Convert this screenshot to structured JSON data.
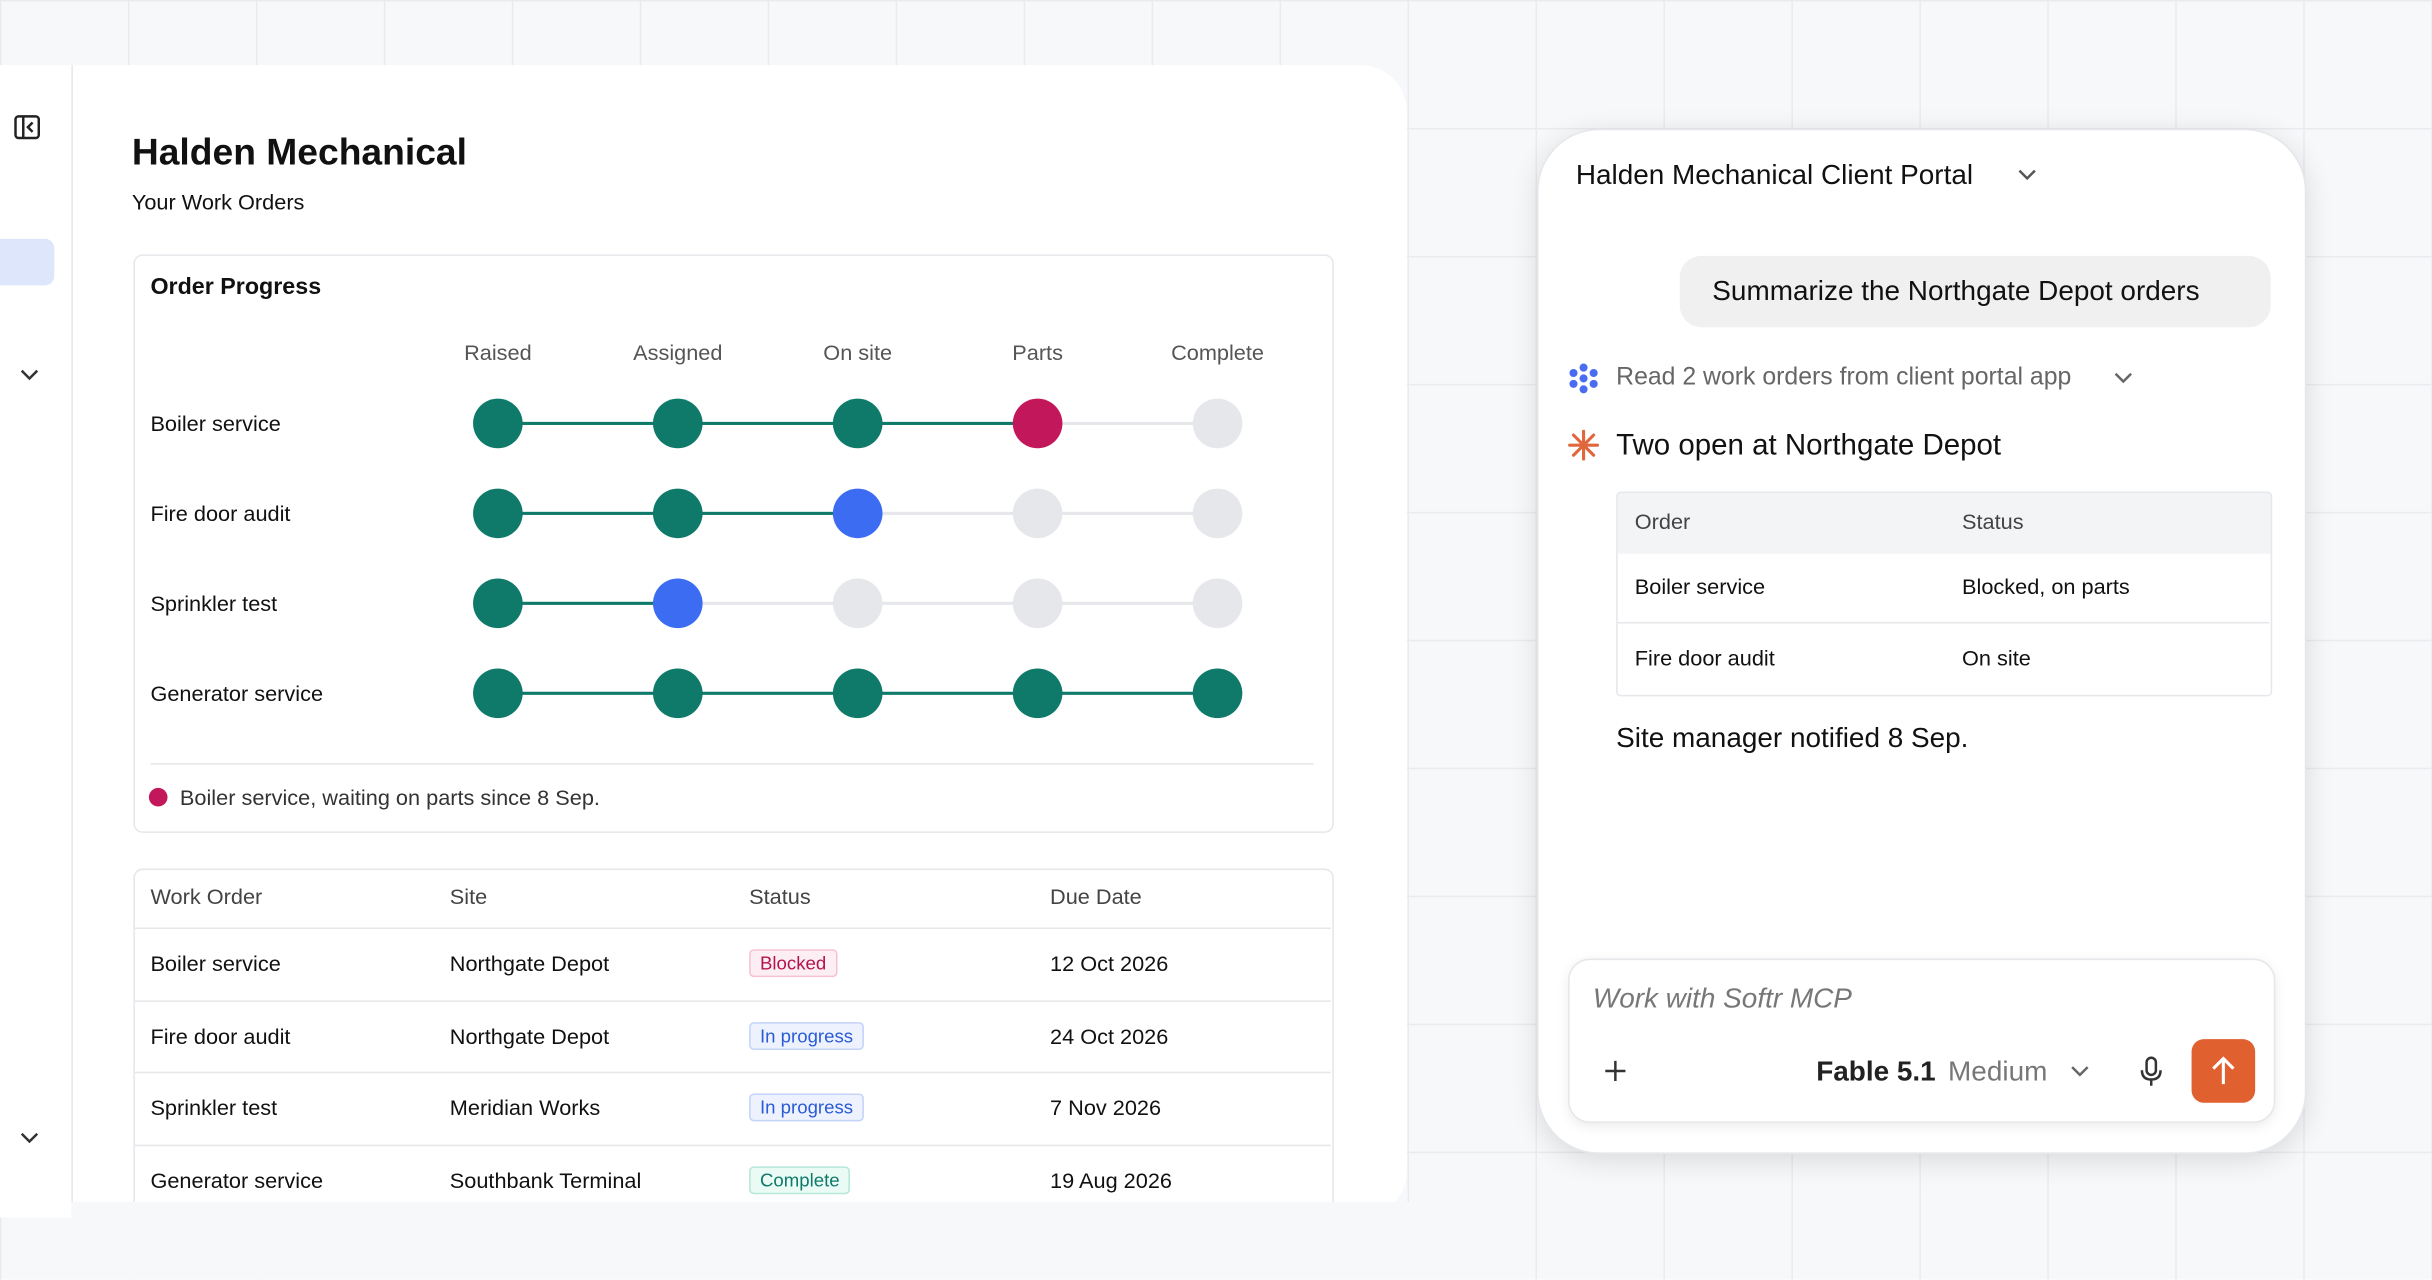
{
  "app": {
    "title": "Halden Mechanical",
    "subtitle": "Your Work Orders",
    "progress": {
      "title": "Order Progress",
      "stages": [
        "Raised",
        "Assigned",
        "On site",
        "Parts",
        "Complete"
      ],
      "rows": [
        {
          "name": "Boiler service",
          "dots": [
            "#0f7a6a",
            "#0f7a6a",
            "#0f7a6a",
            "#c2185b",
            "#e5e7eb"
          ]
        },
        {
          "name": "Fire door audit",
          "dots": [
            "#0f7a6a",
            "#0f7a6a",
            "#3b6cf2",
            "#e5e7eb",
            "#e5e7eb"
          ]
        },
        {
          "name": "Sprinkler test",
          "dots": [
            "#0f7a6a",
            "#3b6cf2",
            "#e5e7eb",
            "#e5e7eb",
            "#e5e7eb"
          ]
        },
        {
          "name": "Generator service",
          "dots": [
            "#0f7a6a",
            "#0f7a6a",
            "#0f7a6a",
            "#0f7a6a",
            "#0f7a6a"
          ]
        }
      ],
      "note": "Boiler service, waiting on parts since 8 Sep.",
      "note_color": "#c2185b"
    },
    "table": {
      "headers": [
        "Work Order",
        "Site",
        "Status",
        "Due Date"
      ],
      "rows": [
        [
          "Boiler service",
          "Northgate Depot",
          "Blocked",
          "12 Oct 2026"
        ],
        [
          "Fire door audit",
          "Northgate Depot",
          "In progress",
          "24 Oct 2026"
        ],
        [
          "Sprinkler test",
          "Meridian Works",
          "In progress",
          "7 Nov 2026"
        ],
        [
          "Generator service",
          "Southbank Terminal",
          "Complete",
          "19 Aug 2026"
        ]
      ]
    }
  },
  "chat": {
    "portal": "Halden Mechanical Client Portal",
    "prompt": "Summarize the Northgate Depot orders",
    "tool": "Read 2 work orders from client portal app",
    "heading": "Two open at Northgate Depot",
    "table": {
      "headers": [
        "Order",
        "Status"
      ],
      "rows": [
        [
          "Boiler service",
          "Blocked, on parts"
        ],
        [
          "Fire door audit",
          "On site"
        ]
      ]
    },
    "footer": "Site manager notified 8 Sep.",
    "placeholder": "Work with Softr MCP",
    "model": "Fable 5.1",
    "effort": "Medium"
  }
}
